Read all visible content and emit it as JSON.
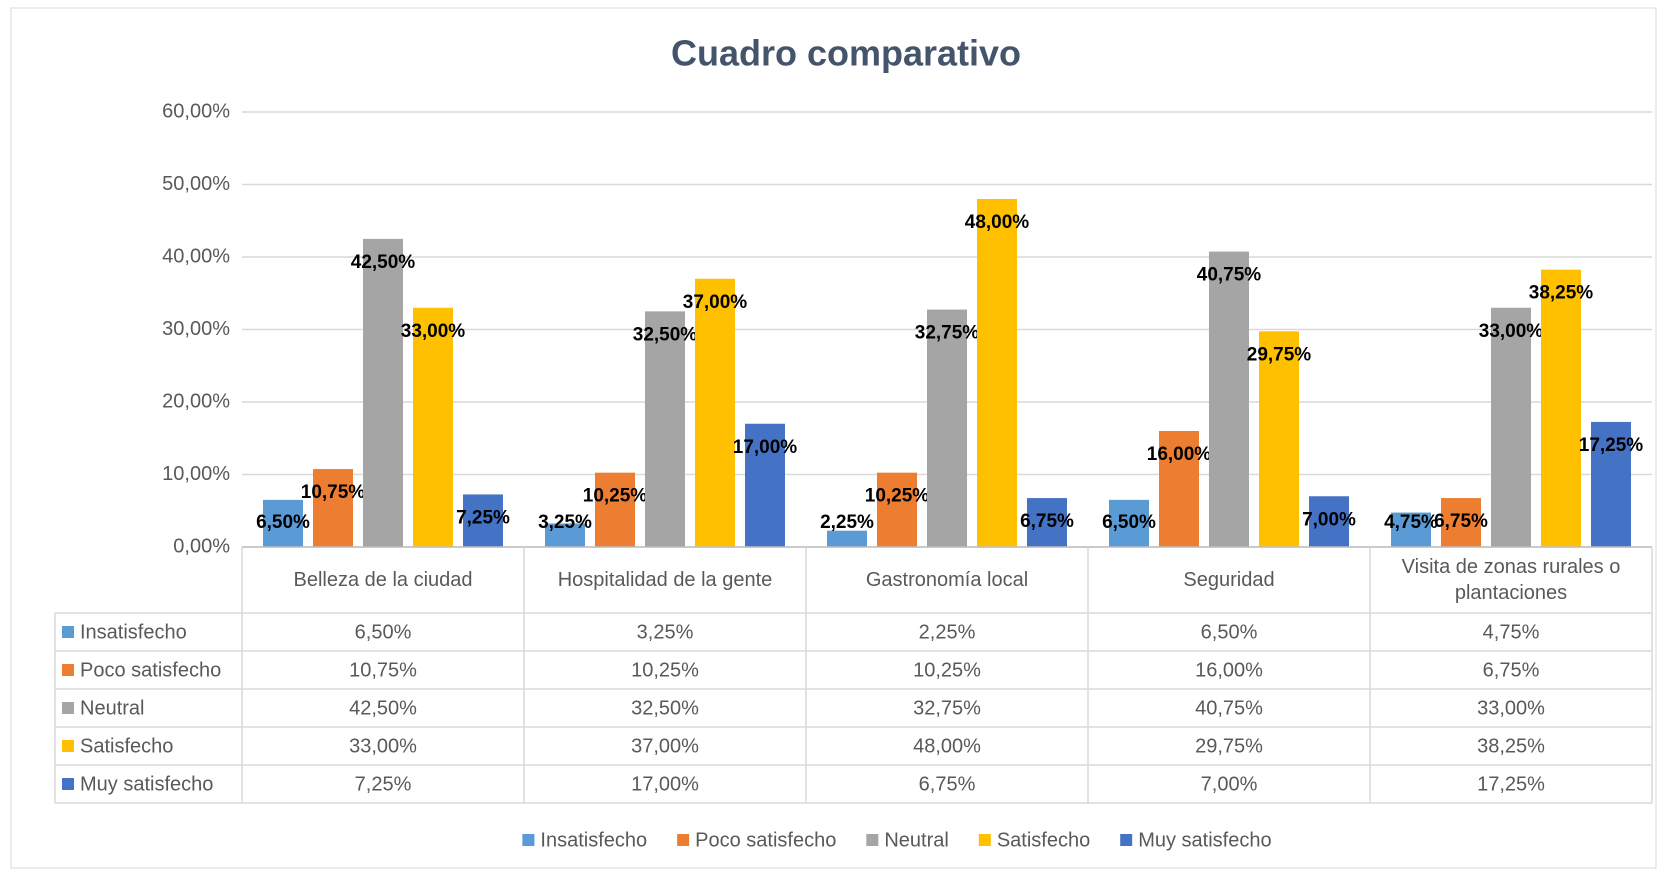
{
  "chart_data": {
    "type": "bar",
    "title": "Cuadro comparativo",
    "categories": [
      "Belleza de la ciudad",
      "Hospitalidad de la gente",
      "Gastronomía local",
      "Seguridad",
      "Visita de zonas rurales o plantaciones"
    ],
    "series": [
      {
        "name": "Insatisfecho",
        "color": "#5b9bd5",
        "values": [
          6.5,
          3.25,
          2.25,
          6.5,
          4.75
        ],
        "value_labels": [
          "6,50%",
          "3,25%",
          "2,25%",
          "6,50%",
          "4,75%"
        ]
      },
      {
        "name": "Poco satisfecho",
        "color": "#ed7d31",
        "values": [
          10.75,
          10.25,
          10.25,
          16,
          6.75
        ],
        "value_labels": [
          "10,75%",
          "10,25%",
          "10,25%",
          "16,00%",
          "6,75%"
        ]
      },
      {
        "name": "Neutral",
        "color": "#a5a5a5",
        "values": [
          42.5,
          32.5,
          32.75,
          40.75,
          33
        ],
        "value_labels": [
          "42,50%",
          "32,50%",
          "32,75%",
          "40,75%",
          "33,00%"
        ]
      },
      {
        "name": "Satisfecho",
        "color": "#ffc000",
        "values": [
          33,
          37,
          48,
          29.75,
          38.25
        ],
        "value_labels": [
          "33,00%",
          "37,00%",
          "48,00%",
          "29,75%",
          "38,25%"
        ]
      },
      {
        "name": "Muy satisfecho",
        "color": "#4472c4",
        "values": [
          7.25,
          17,
          6.75,
          7,
          17.25
        ],
        "value_labels": [
          "7,25%",
          "17,00%",
          "6,75%",
          "7,00%",
          "17,25%"
        ]
      }
    ],
    "ylim": [
      0,
      60
    ],
    "yticks": [
      {
        "value": 0,
        "label": "0,00%"
      },
      {
        "value": 10,
        "label": "10,00%"
      },
      {
        "value": 20,
        "label": "20,00%"
      },
      {
        "value": 30,
        "label": "30,00%"
      },
      {
        "value": 40,
        "label": "40,00%"
      },
      {
        "value": 50,
        "label": "50,00%"
      },
      {
        "value": 60,
        "label": "60,00%"
      }
    ],
    "grid": true
  }
}
